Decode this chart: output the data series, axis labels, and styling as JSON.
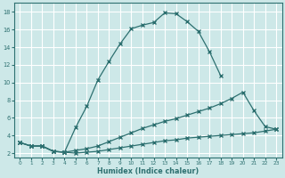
{
  "xlabel": "Humidex (Indice chaleur)",
  "background_color": "#cde8e8",
  "grid_color": "#b0d8d8",
  "line_color": "#2d7070",
  "xlim": [
    -0.5,
    23.5
  ],
  "ylim": [
    1.5,
    19.0
  ],
  "xticks": [
    0,
    1,
    2,
    3,
    4,
    5,
    6,
    7,
    8,
    9,
    10,
    11,
    12,
    13,
    14,
    15,
    16,
    17,
    18,
    19,
    20,
    21,
    22,
    23
  ],
  "yticks": [
    2,
    4,
    6,
    8,
    10,
    12,
    14,
    16,
    18
  ],
  "curve_top_x": [
    0,
    1,
    2,
    3,
    4,
    5,
    6,
    7,
    8,
    9,
    10,
    11,
    12,
    13,
    14,
    15,
    16,
    17,
    18
  ],
  "curve_top_y": [
    3.2,
    2.8,
    2.8,
    2.2,
    2.1,
    4.9,
    7.3,
    10.3,
    12.4,
    14.4,
    16.1,
    16.5,
    16.8,
    17.9,
    17.8,
    16.9,
    15.8,
    13.5,
    10.8
  ],
  "curve_mid_x": [
    0,
    1,
    2,
    3,
    4,
    5,
    6,
    7,
    8,
    9,
    10,
    11,
    12,
    13,
    14,
    15,
    16,
    17,
    18,
    19,
    20,
    21,
    22,
    23
  ],
  "curve_mid_y": [
    3.2,
    2.8,
    2.8,
    2.2,
    2.1,
    2.3,
    2.5,
    2.8,
    3.3,
    3.8,
    4.3,
    4.8,
    5.2,
    5.6,
    5.9,
    6.3,
    6.7,
    7.1,
    7.6,
    8.2,
    8.9,
    6.8,
    5.0,
    4.7
  ],
  "curve_bot_x": [
    0,
    1,
    2,
    3,
    4,
    5,
    6,
    7,
    8,
    9,
    10,
    11,
    12,
    13,
    14,
    15,
    16,
    17,
    18,
    19,
    20,
    21,
    22,
    23
  ],
  "curve_bot_y": [
    3.2,
    2.8,
    2.8,
    2.2,
    2.1,
    2.0,
    2.1,
    2.2,
    2.4,
    2.6,
    2.8,
    3.0,
    3.2,
    3.4,
    3.5,
    3.7,
    3.8,
    3.9,
    4.0,
    4.1,
    4.2,
    4.3,
    4.5,
    4.7
  ]
}
